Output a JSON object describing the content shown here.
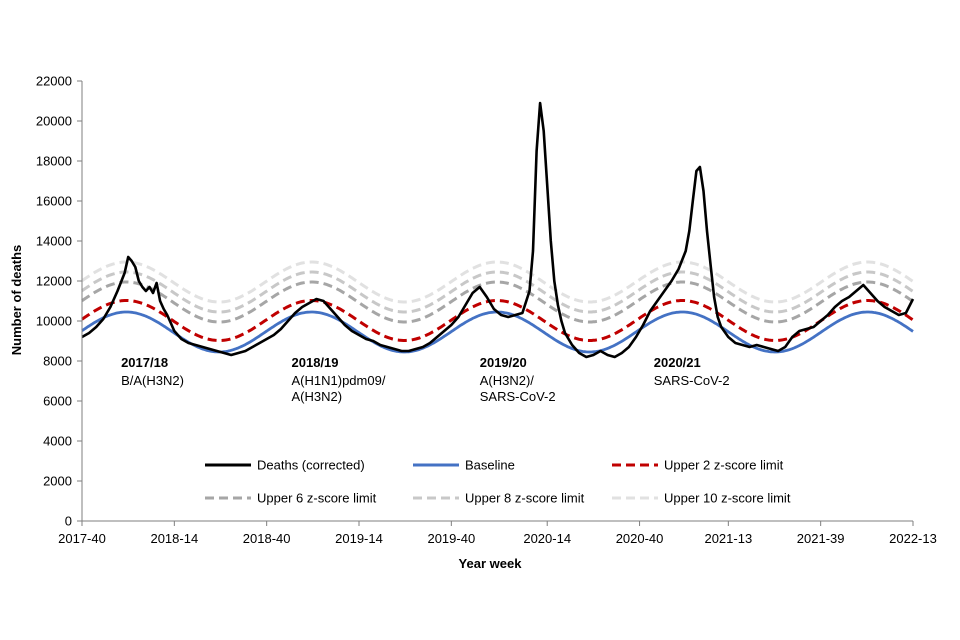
{
  "chart_data": {
    "type": "line",
    "xlabel": "Year week",
    "ylabel": "Number of deaths",
    "ylim": [
      0,
      22000
    ],
    "y_ticks": [
      0,
      2000,
      4000,
      6000,
      8000,
      10000,
      12000,
      14000,
      16000,
      18000,
      20000,
      22000
    ],
    "x_range_weeks": [
      0,
      234
    ],
    "x_ticks": [
      {
        "label": "2017-40",
        "week": 0
      },
      {
        "label": "2018-14",
        "week": 26
      },
      {
        "label": "2018-40",
        "week": 52
      },
      {
        "label": "2019-14",
        "week": 78
      },
      {
        "label": "2019-40",
        "week": 104
      },
      {
        "label": "2020-14",
        "week": 131
      },
      {
        "label": "2020-40",
        "week": 157
      },
      {
        "label": "2021-13",
        "week": 182
      },
      {
        "label": "2021-39",
        "week": 208
      },
      {
        "label": "2022-13",
        "week": 234
      }
    ],
    "annotations": [
      {
        "season": "2017/18",
        "strain": "B/A(H3N2)",
        "week": 11
      },
      {
        "season": "2018/19",
        "strain": "A(H1N1)pdm09/\nA(H3N2)",
        "week": 59
      },
      {
        "season": "2019/20",
        "strain": "A(H3N2)/\nSARS-CoV-2",
        "week": 112
      },
      {
        "season": "2020/21",
        "strain": "SARS-CoV-2",
        "week": 161
      }
    ],
    "series": [
      {
        "name": "Deaths (corrected)",
        "color": "#000000",
        "dash": "solid",
        "points": [
          [
            0,
            9200
          ],
          [
            2,
            9400
          ],
          [
            4,
            9700
          ],
          [
            6,
            10100
          ],
          [
            8,
            10700
          ],
          [
            10,
            11500
          ],
          [
            12,
            12400
          ],
          [
            13,
            13200
          ],
          [
            14,
            13000
          ],
          [
            15,
            12700
          ],
          [
            16,
            12000
          ],
          [
            17,
            11700
          ],
          [
            18,
            11500
          ],
          [
            19,
            11700
          ],
          [
            20,
            11400
          ],
          [
            21,
            11900
          ],
          [
            22,
            11000
          ],
          [
            23,
            10600
          ],
          [
            24,
            10300
          ],
          [
            25,
            9900
          ],
          [
            26,
            9500
          ],
          [
            28,
            9100
          ],
          [
            30,
            8900
          ],
          [
            32,
            8800
          ],
          [
            34,
            8700
          ],
          [
            36,
            8600
          ],
          [
            38,
            8500
          ],
          [
            40,
            8400
          ],
          [
            42,
            8300
          ],
          [
            44,
            8400
          ],
          [
            46,
            8500
          ],
          [
            48,
            8700
          ],
          [
            50,
            8900
          ],
          [
            52,
            9100
          ],
          [
            54,
            9300
          ],
          [
            56,
            9600
          ],
          [
            58,
            10000
          ],
          [
            60,
            10400
          ],
          [
            62,
            10700
          ],
          [
            64,
            10900
          ],
          [
            66,
            11100
          ],
          [
            68,
            11000
          ],
          [
            70,
            10600
          ],
          [
            72,
            10200
          ],
          [
            74,
            9800
          ],
          [
            76,
            9500
          ],
          [
            78,
            9300
          ],
          [
            80,
            9100
          ],
          [
            82,
            9000
          ],
          [
            84,
            8800
          ],
          [
            86,
            8700
          ],
          [
            88,
            8600
          ],
          [
            90,
            8500
          ],
          [
            92,
            8500
          ],
          [
            94,
            8600
          ],
          [
            96,
            8700
          ],
          [
            98,
            8900
          ],
          [
            100,
            9200
          ],
          [
            102,
            9500
          ],
          [
            104,
            9800
          ],
          [
            106,
            10200
          ],
          [
            108,
            10800
          ],
          [
            110,
            11400
          ],
          [
            112,
            11700
          ],
          [
            114,
            11200
          ],
          [
            116,
            10600
          ],
          [
            118,
            10300
          ],
          [
            120,
            10200
          ],
          [
            122,
            10300
          ],
          [
            124,
            10400
          ],
          [
            126,
            11500
          ],
          [
            127,
            13500
          ],
          [
            128,
            18500
          ],
          [
            129,
            20900
          ],
          [
            130,
            19500
          ],
          [
            131,
            16800
          ],
          [
            132,
            14000
          ],
          [
            133,
            12000
          ],
          [
            134,
            10800
          ],
          [
            135,
            10000
          ],
          [
            136,
            9400
          ],
          [
            138,
            8800
          ],
          [
            140,
            8400
          ],
          [
            142,
            8200
          ],
          [
            144,
            8300
          ],
          [
            146,
            8500
          ],
          [
            148,
            8300
          ],
          [
            150,
            8200
          ],
          [
            152,
            8400
          ],
          [
            154,
            8700
          ],
          [
            156,
            9200
          ],
          [
            158,
            9800
          ],
          [
            160,
            10500
          ],
          [
            162,
            11000
          ],
          [
            164,
            11500
          ],
          [
            166,
            12000
          ],
          [
            168,
            12600
          ],
          [
            170,
            13500
          ],
          [
            171,
            14500
          ],
          [
            172,
            16000
          ],
          [
            173,
            17500
          ],
          [
            174,
            17700
          ],
          [
            175,
            16500
          ],
          [
            176,
            14500
          ],
          [
            177,
            12800
          ],
          [
            178,
            11200
          ],
          [
            179,
            10200
          ],
          [
            180,
            9700
          ],
          [
            182,
            9200
          ],
          [
            184,
            8900
          ],
          [
            186,
            8800
          ],
          [
            188,
            8700
          ],
          [
            190,
            8800
          ],
          [
            192,
            8700
          ],
          [
            194,
            8600
          ],
          [
            196,
            8500
          ],
          [
            198,
            8700
          ],
          [
            200,
            9200
          ],
          [
            202,
            9500
          ],
          [
            204,
            9600
          ],
          [
            206,
            9700
          ],
          [
            208,
            10000
          ],
          [
            210,
            10300
          ],
          [
            212,
            10700
          ],
          [
            214,
            11000
          ],
          [
            216,
            11200
          ],
          [
            218,
            11500
          ],
          [
            220,
            11800
          ],
          [
            222,
            11400
          ],
          [
            224,
            11000
          ],
          [
            226,
            10700
          ],
          [
            228,
            10500
          ],
          [
            230,
            10300
          ],
          [
            232,
            10400
          ],
          [
            234,
            11100
          ]
        ]
      },
      {
        "name": "Baseline",
        "color": "#4472c4",
        "dash": "solid",
        "model": {
          "mean": 9450,
          "amp": 1000,
          "shift": 0
        }
      },
      {
        "name": "Upper 2 z-score limit",
        "color": "#c00000",
        "dash": "9 5",
        "model": {
          "mean": 9450,
          "amp": 1000,
          "shift": 575
        }
      },
      {
        "name": "Upper 6 z-score limit",
        "color": "#a6a6a6",
        "dash": "9 5",
        "model": {
          "mean": 9450,
          "amp": 1000,
          "shift": 1500
        }
      },
      {
        "name": "Upper 8 z-score limit",
        "color": "#c8c8c8",
        "dash": "9 5",
        "model": {
          "mean": 9450,
          "amp": 1000,
          "shift": 2000
        }
      },
      {
        "name": "Upper 10 z-score limit",
        "color": "#e1e1e1",
        "dash": "9 5",
        "model": {
          "mean": 9450,
          "amp": 1000,
          "shift": 2500
        }
      }
    ],
    "cycle": {
      "period_weeks": 52.18,
      "peak_week": 12.5
    },
    "legend": {
      "position": "bottom-inside",
      "columns": 3
    }
  }
}
